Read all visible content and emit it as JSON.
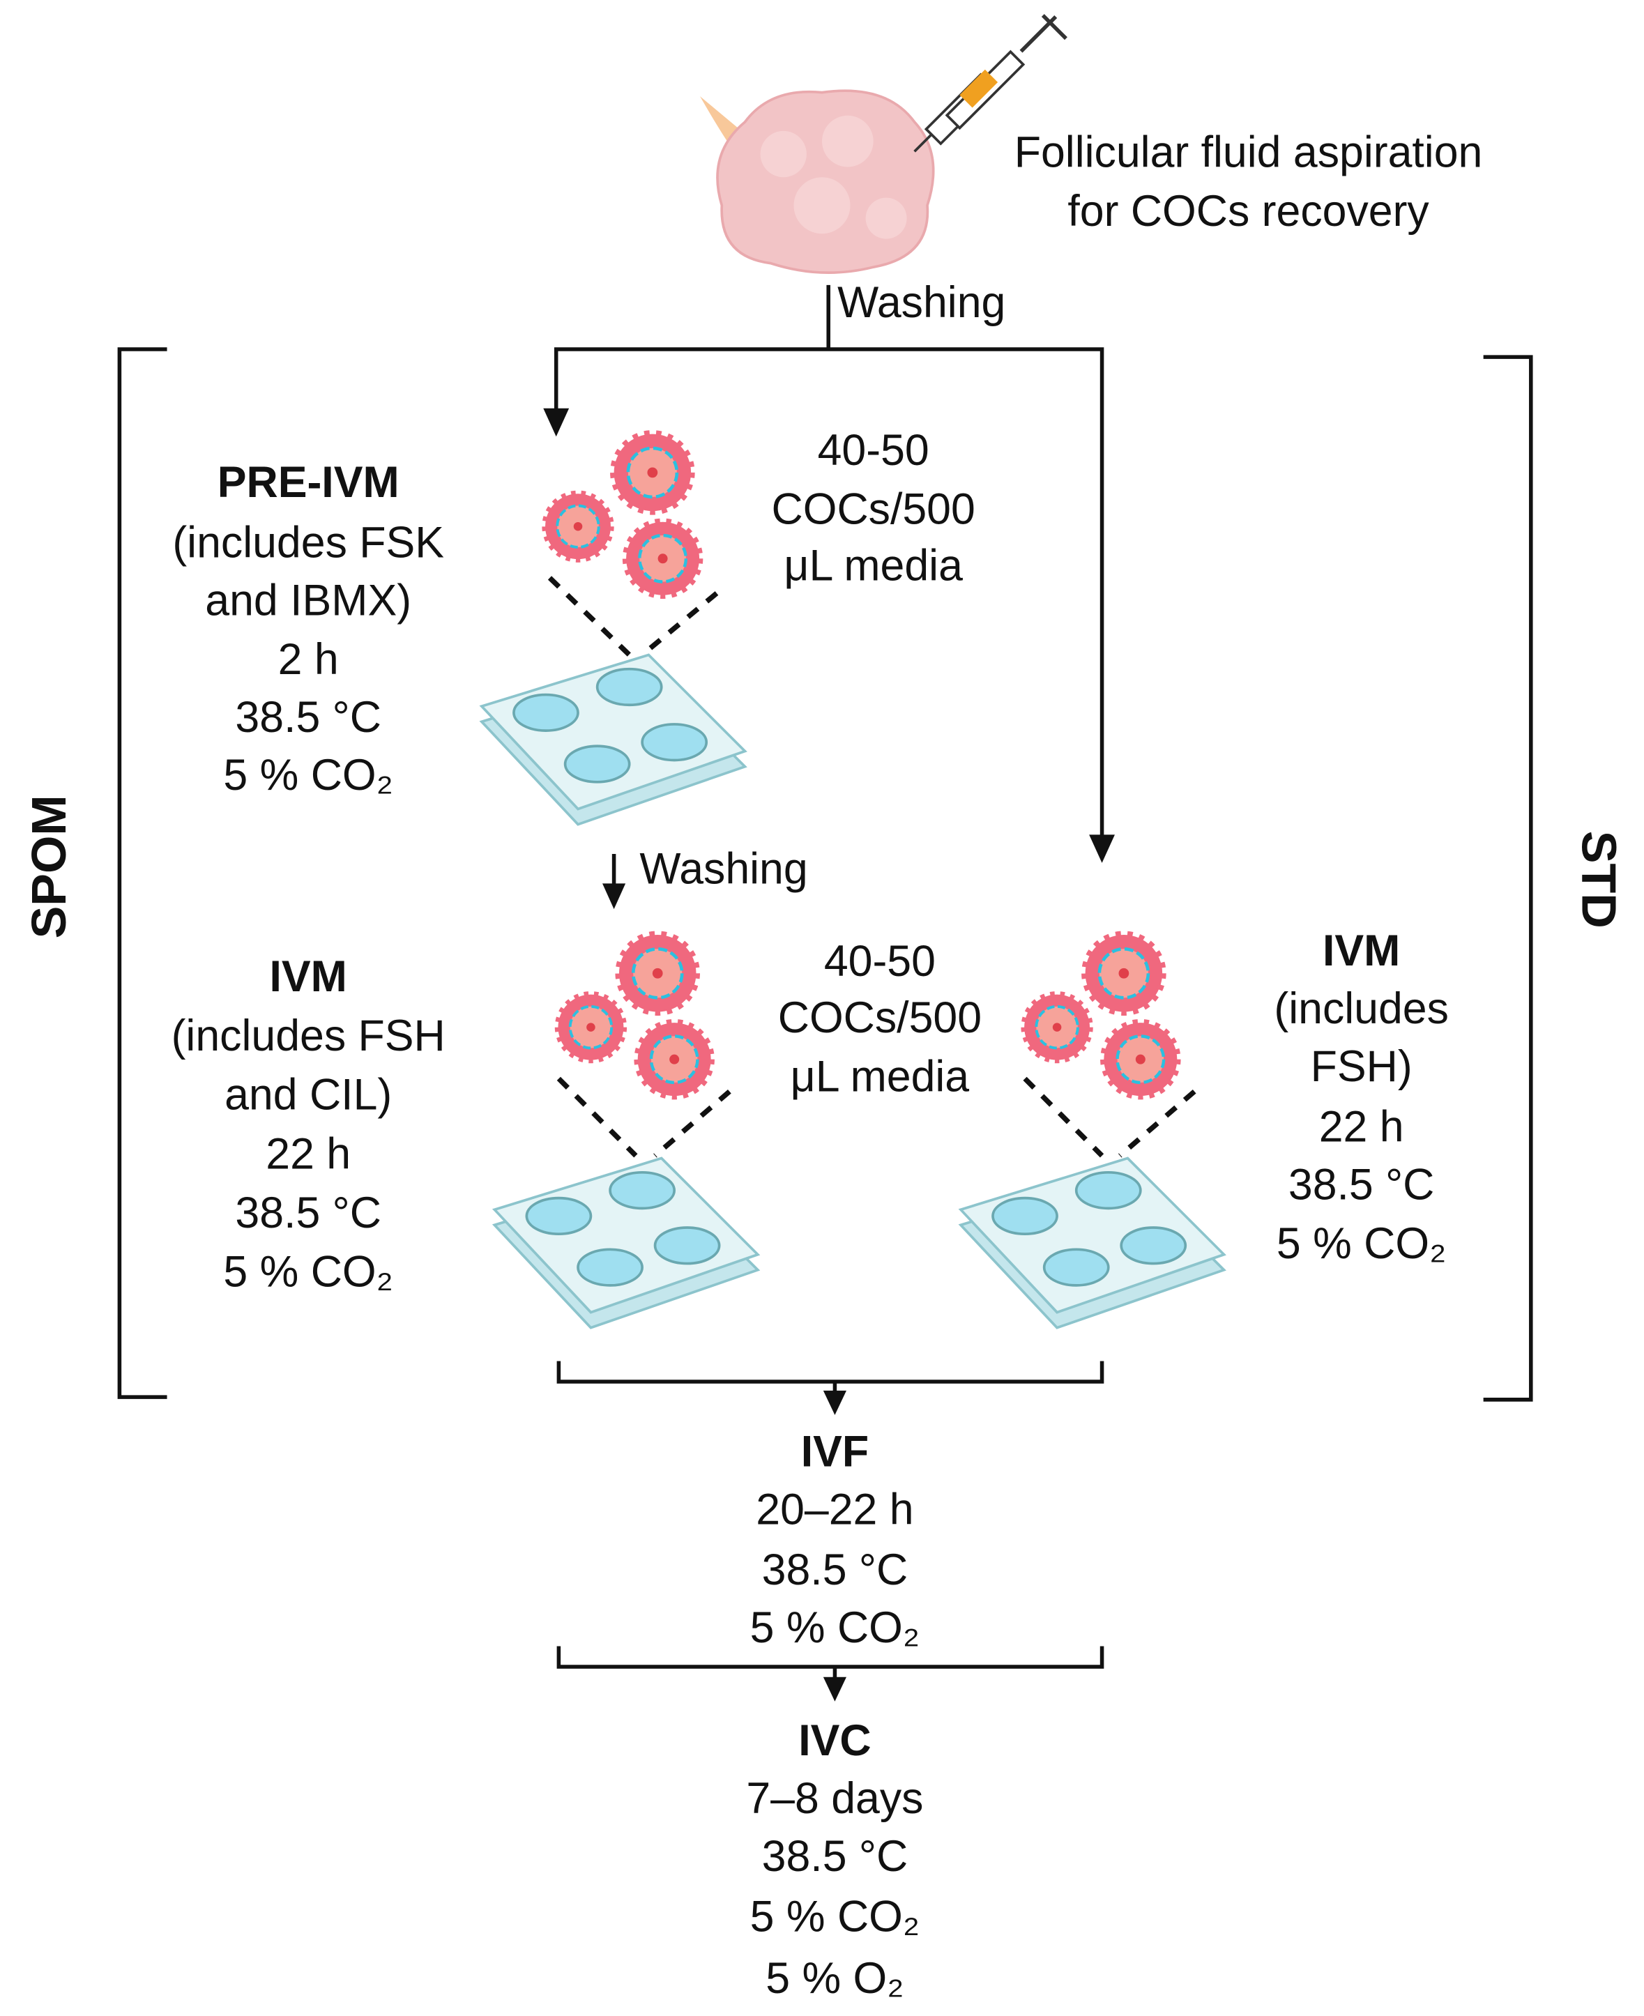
{
  "header": {
    "aspiration_line1": "Follicular fluid aspiration",
    "aspiration_line2": "for COCs recovery",
    "washing_1": "Washing"
  },
  "groups": {
    "left": "SPOM",
    "right": "STD"
  },
  "pre_ivm": {
    "title": "PRE-IVM",
    "lines": [
      "(includes FSK",
      "and IBMX)",
      "2 h",
      "38.5 °C",
      "5 % CO₂"
    ],
    "density": [
      "40-50",
      "COCs/500",
      "μL media"
    ]
  },
  "washing_2": "Washing",
  "ivm_spom": {
    "title": "IVM",
    "lines": [
      "(includes FSH",
      "and CIL)",
      "22 h",
      "38.5 °C",
      "5 % CO₂"
    ],
    "density": [
      "40-50",
      "COCs/500",
      "μL media"
    ]
  },
  "ivm_std": {
    "title": "IVM",
    "lines": [
      "(includes",
      "FSH)",
      "22 h",
      "38.5 °C",
      "5 % CO₂"
    ]
  },
  "ivf": {
    "title": "IVF",
    "lines": [
      "20–22 h",
      "38.5 °C",
      "5 % CO₂"
    ]
  },
  "ivc": {
    "title": "IVC",
    "lines": [
      "7–8 days",
      "38.5 °C",
      "5 % CO₂",
      "5 % O₂"
    ]
  },
  "colors": {
    "ovary": "#f2c4c6",
    "coc_outer": "#f0687e",
    "oocyte": "#f6a39a",
    "zona": "#2bc0e0",
    "plate": "#d6eef2",
    "well": "#9fdff0",
    "syringe_fluid": "#f0a020"
  }
}
